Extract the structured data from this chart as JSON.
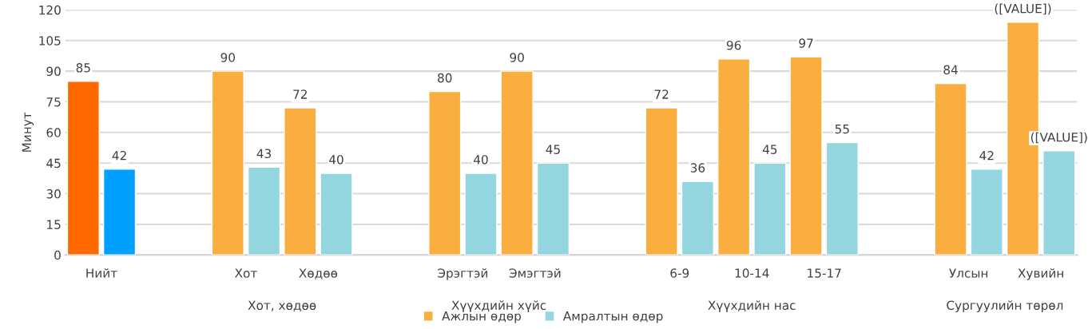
{
  "chart_data": {
    "type": "bar",
    "ylabel": "Минут",
    "categories": [
      "Нийт",
      null,
      "Хот",
      "Хөдөө",
      null,
      "Эрэгтэй",
      "Эмэгтэй",
      null,
      "6-9",
      "10-14",
      "15-17",
      null,
      "Улсын",
      "Хувийн"
    ],
    "series": [
      {
        "name": "Ажлын өдөр",
        "color": "#fbae40",
        "colors": [
          "#ff6a00",
          null,
          "#fbae40",
          "#fbae40",
          null,
          "#fbae40",
          "#fbae40",
          null,
          "#fbae40",
          "#fbae40",
          "#fbae40",
          null,
          "#fbae40",
          "#fbae40"
        ],
        "values": [
          85,
          null,
          90,
          72,
          null,
          80,
          90,
          null,
          72,
          96,
          97,
          null,
          84,
          114
        ],
        "value_labels": [
          "85",
          null,
          "90",
          "72",
          null,
          "80",
          "90",
          null,
          "72",
          "96",
          "97",
          null,
          "84",
          "([VALUE])"
        ]
      },
      {
        "name": "Амралтын өдөр",
        "color": "#93d6e0",
        "colors": [
          "#00a0ff",
          null,
          "#93d6e0",
          "#93d6e0",
          null,
          "#93d6e0",
          "#93d6e0",
          null,
          "#93d6e0",
          "#93d6e0",
          "#93d6e0",
          null,
          "#93d6e0",
          "#93d6e0"
        ],
        "values": [
          42,
          null,
          43,
          40,
          null,
          40,
          45,
          null,
          36,
          45,
          55,
          null,
          42,
          51
        ],
        "value_labels": [
          "42",
          null,
          "43",
          "40",
          null,
          "40",
          "45",
          null,
          "36",
          "45",
          "55",
          null,
          "42",
          "([VALUE])"
        ]
      }
    ],
    "annotations": [
      "Хот, хөдөө",
      "Хүүхдийн хүйс",
      "Хүүхдийн нас",
      "Сургуулийн төрөл"
    ],
    "ylim": [
      0,
      120
    ],
    "yticks": [
      0,
      15,
      30,
      45,
      60,
      75,
      90,
      105,
      120
    ],
    "grid": "y",
    "legend": "bottom"
  }
}
